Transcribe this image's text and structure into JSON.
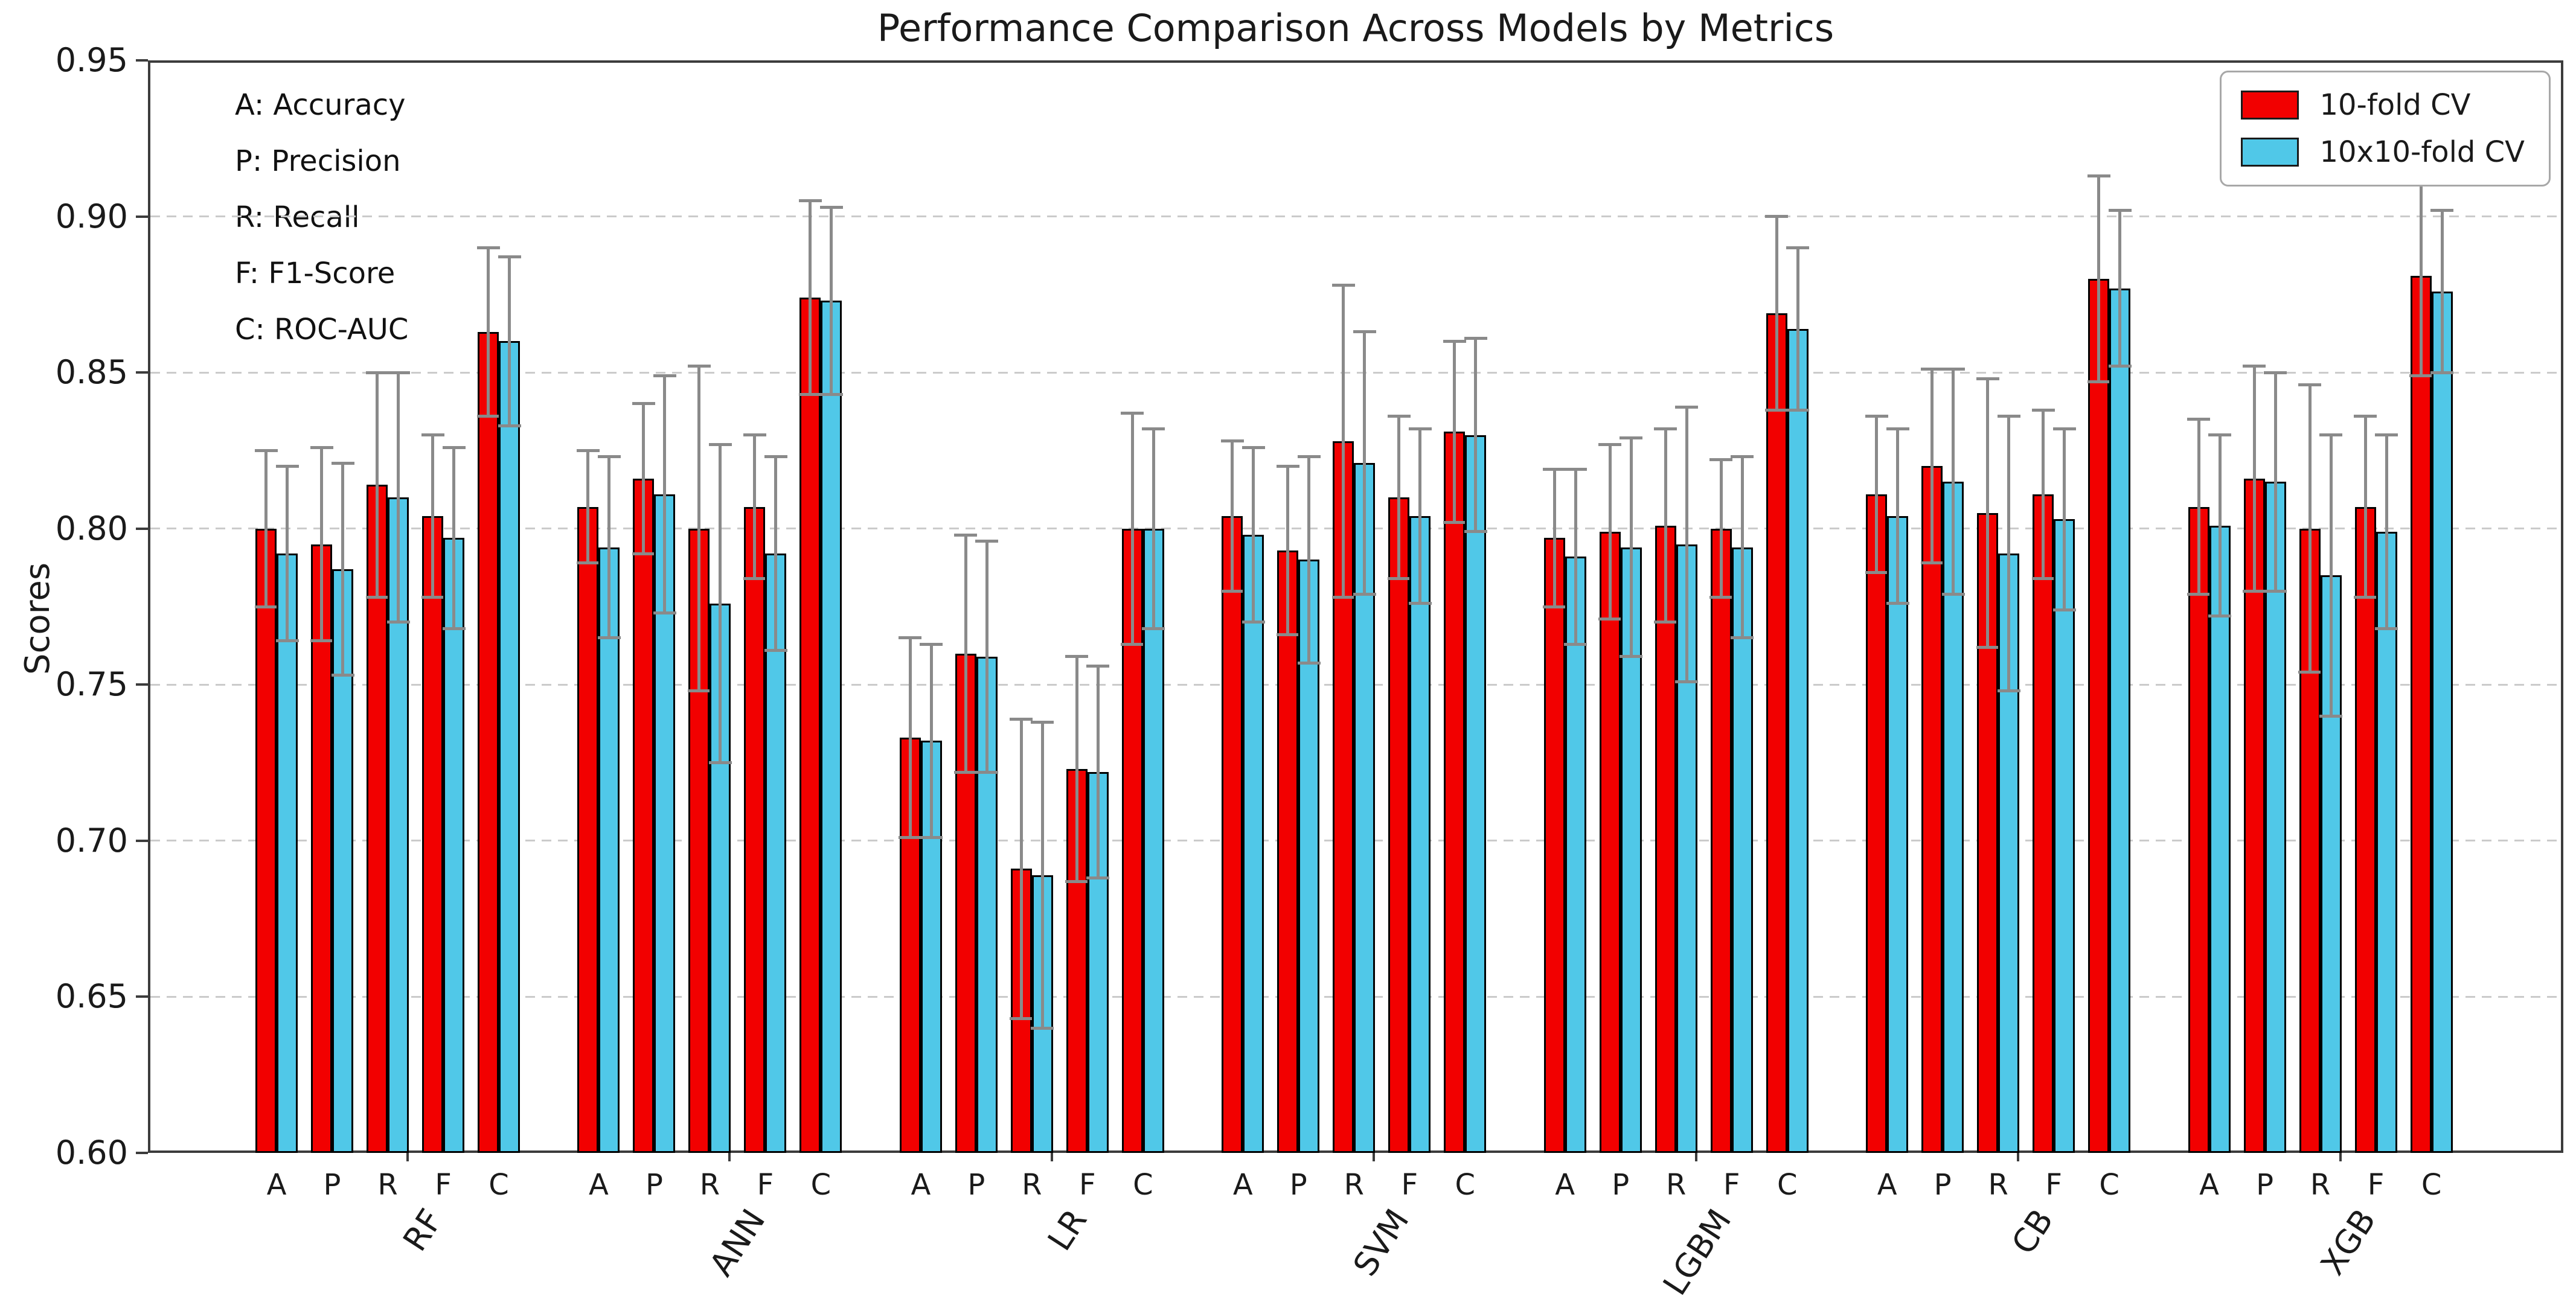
{
  "title": "Performance Comparison Across Models by Metrics",
  "ylabel": "Scores",
  "metric_legend": {
    "lines": [
      "A: Accuracy",
      "P: Precision",
      "R: Recall",
      "F: F1-Score",
      "C: ROC-AUC"
    ]
  },
  "chart_data": {
    "type": "bar",
    "title": "Performance Comparison Across Models by Metrics",
    "xlabel": "",
    "ylabel": "Scores",
    "ylim": [
      0.6,
      0.95
    ],
    "yticks": [
      0.6,
      0.65,
      0.7,
      0.75,
      0.8,
      0.85,
      0.9,
      0.95
    ],
    "grid": "dashed horizontal, light gray, at 0.65-0.90",
    "legend_position": "upper right",
    "groups": [
      "RF",
      "ANN",
      "LR",
      "SVM",
      "LGBM",
      "CB",
      "XGB"
    ],
    "metrics": [
      "A",
      "P",
      "R",
      "F",
      "C"
    ],
    "error_bars": "symmetric, gray with caps",
    "series": [
      {
        "name": "10-fold CV",
        "color": "#f20000",
        "values": {
          "RF": [
            0.8,
            0.795,
            0.814,
            0.804,
            0.863
          ],
          "ANN": [
            0.807,
            0.816,
            0.8,
            0.807,
            0.874
          ],
          "LR": [
            0.733,
            0.76,
            0.691,
            0.723,
            0.8
          ],
          "SVM": [
            0.804,
            0.793,
            0.828,
            0.81,
            0.831
          ],
          "LGBM": [
            0.797,
            0.799,
            0.801,
            0.8,
            0.869
          ],
          "CB": [
            0.811,
            0.82,
            0.805,
            0.811,
            0.88
          ],
          "XGB": [
            0.807,
            0.816,
            0.8,
            0.807,
            0.881
          ]
        },
        "errors": {
          "RF": [
            0.025,
            0.031,
            0.036,
            0.026,
            0.027
          ],
          "ANN": [
            0.018,
            0.024,
            0.052,
            0.023,
            0.031
          ],
          "LR": [
            0.032,
            0.038,
            0.048,
            0.036,
            0.037
          ],
          "SVM": [
            0.024,
            0.027,
            0.05,
            0.026,
            0.029
          ],
          "LGBM": [
            0.022,
            0.028,
            0.031,
            0.022,
            0.031
          ],
          "CB": [
            0.025,
            0.031,
            0.043,
            0.027,
            0.033
          ],
          "XGB": [
            0.028,
            0.036,
            0.046,
            0.029,
            0.032
          ]
        }
      },
      {
        "name": "10x10-fold CV",
        "color": "#50c8e8",
        "values": {
          "RF": [
            0.792,
            0.787,
            0.81,
            0.797,
            0.86
          ],
          "ANN": [
            0.794,
            0.811,
            0.776,
            0.792,
            0.873
          ],
          "LR": [
            0.732,
            0.759,
            0.689,
            0.722,
            0.8
          ],
          "SVM": [
            0.798,
            0.79,
            0.821,
            0.804,
            0.83
          ],
          "LGBM": [
            0.791,
            0.794,
            0.795,
            0.794,
            0.864
          ],
          "CB": [
            0.804,
            0.815,
            0.792,
            0.803,
            0.877
          ],
          "XGB": [
            0.801,
            0.815,
            0.785,
            0.799,
            0.876
          ]
        },
        "errors": {
          "RF": [
            0.028,
            0.034,
            0.04,
            0.029,
            0.027
          ],
          "ANN": [
            0.029,
            0.038,
            0.051,
            0.031,
            0.03
          ],
          "LR": [
            0.031,
            0.037,
            0.049,
            0.034,
            0.032
          ],
          "SVM": [
            0.028,
            0.033,
            0.042,
            0.028,
            0.031
          ],
          "LGBM": [
            0.028,
            0.035,
            0.044,
            0.029,
            0.026
          ],
          "CB": [
            0.028,
            0.036,
            0.044,
            0.029,
            0.025
          ],
          "XGB": [
            0.029,
            0.035,
            0.045,
            0.031,
            0.026
          ]
        }
      }
    ]
  },
  "colors": {
    "series1": "#f20000",
    "series2": "#50c8e8",
    "bar_edge": "#000000",
    "error_bar": "#8a8a8a",
    "gridline": "#cbcbcb",
    "spine": "#3c3c3c",
    "background": "#ffffff"
  }
}
